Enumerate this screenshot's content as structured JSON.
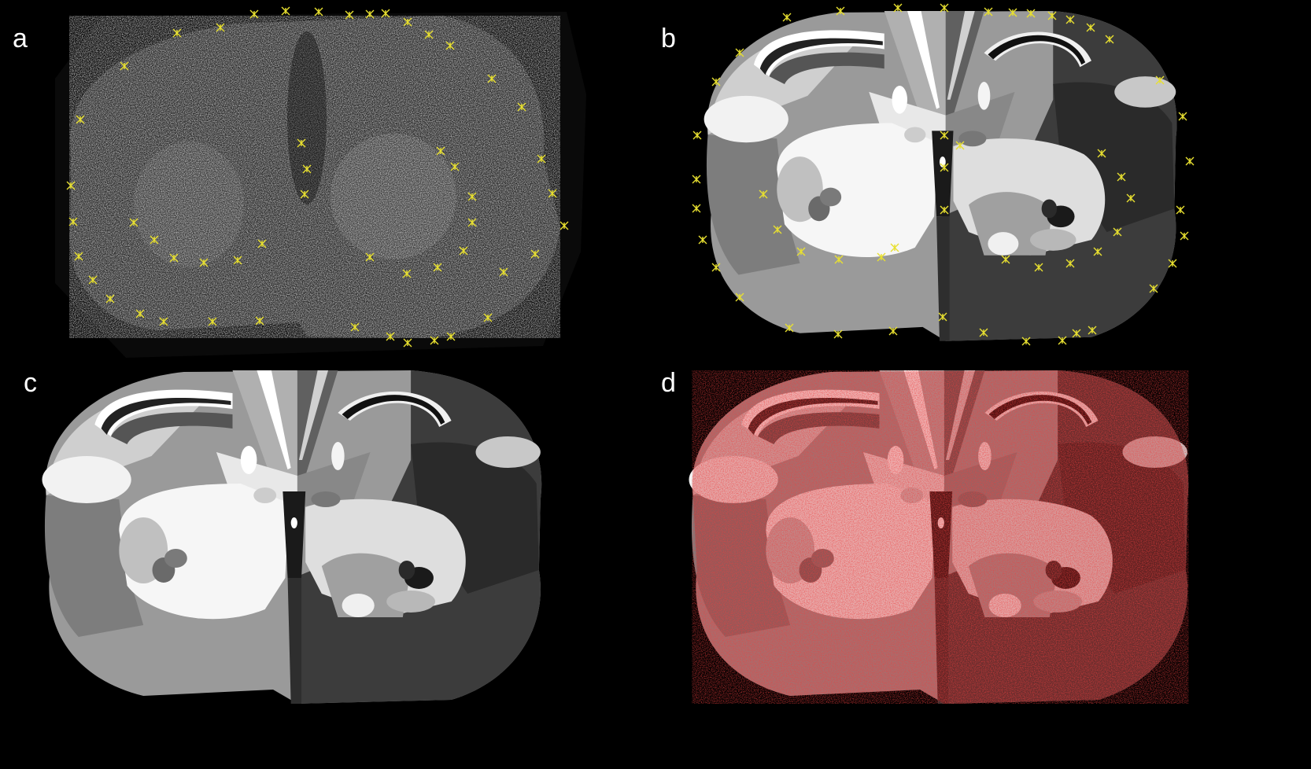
{
  "figure": {
    "panels": [
      {
        "id": "a",
        "label": "a"
      },
      {
        "id": "b",
        "label": "b"
      },
      {
        "id": "c",
        "label": "c"
      },
      {
        "id": "d",
        "label": "d"
      }
    ]
  },
  "colors": {
    "background": "#000000",
    "landmark": "#e8e030",
    "overlay": "#d01010"
  }
}
